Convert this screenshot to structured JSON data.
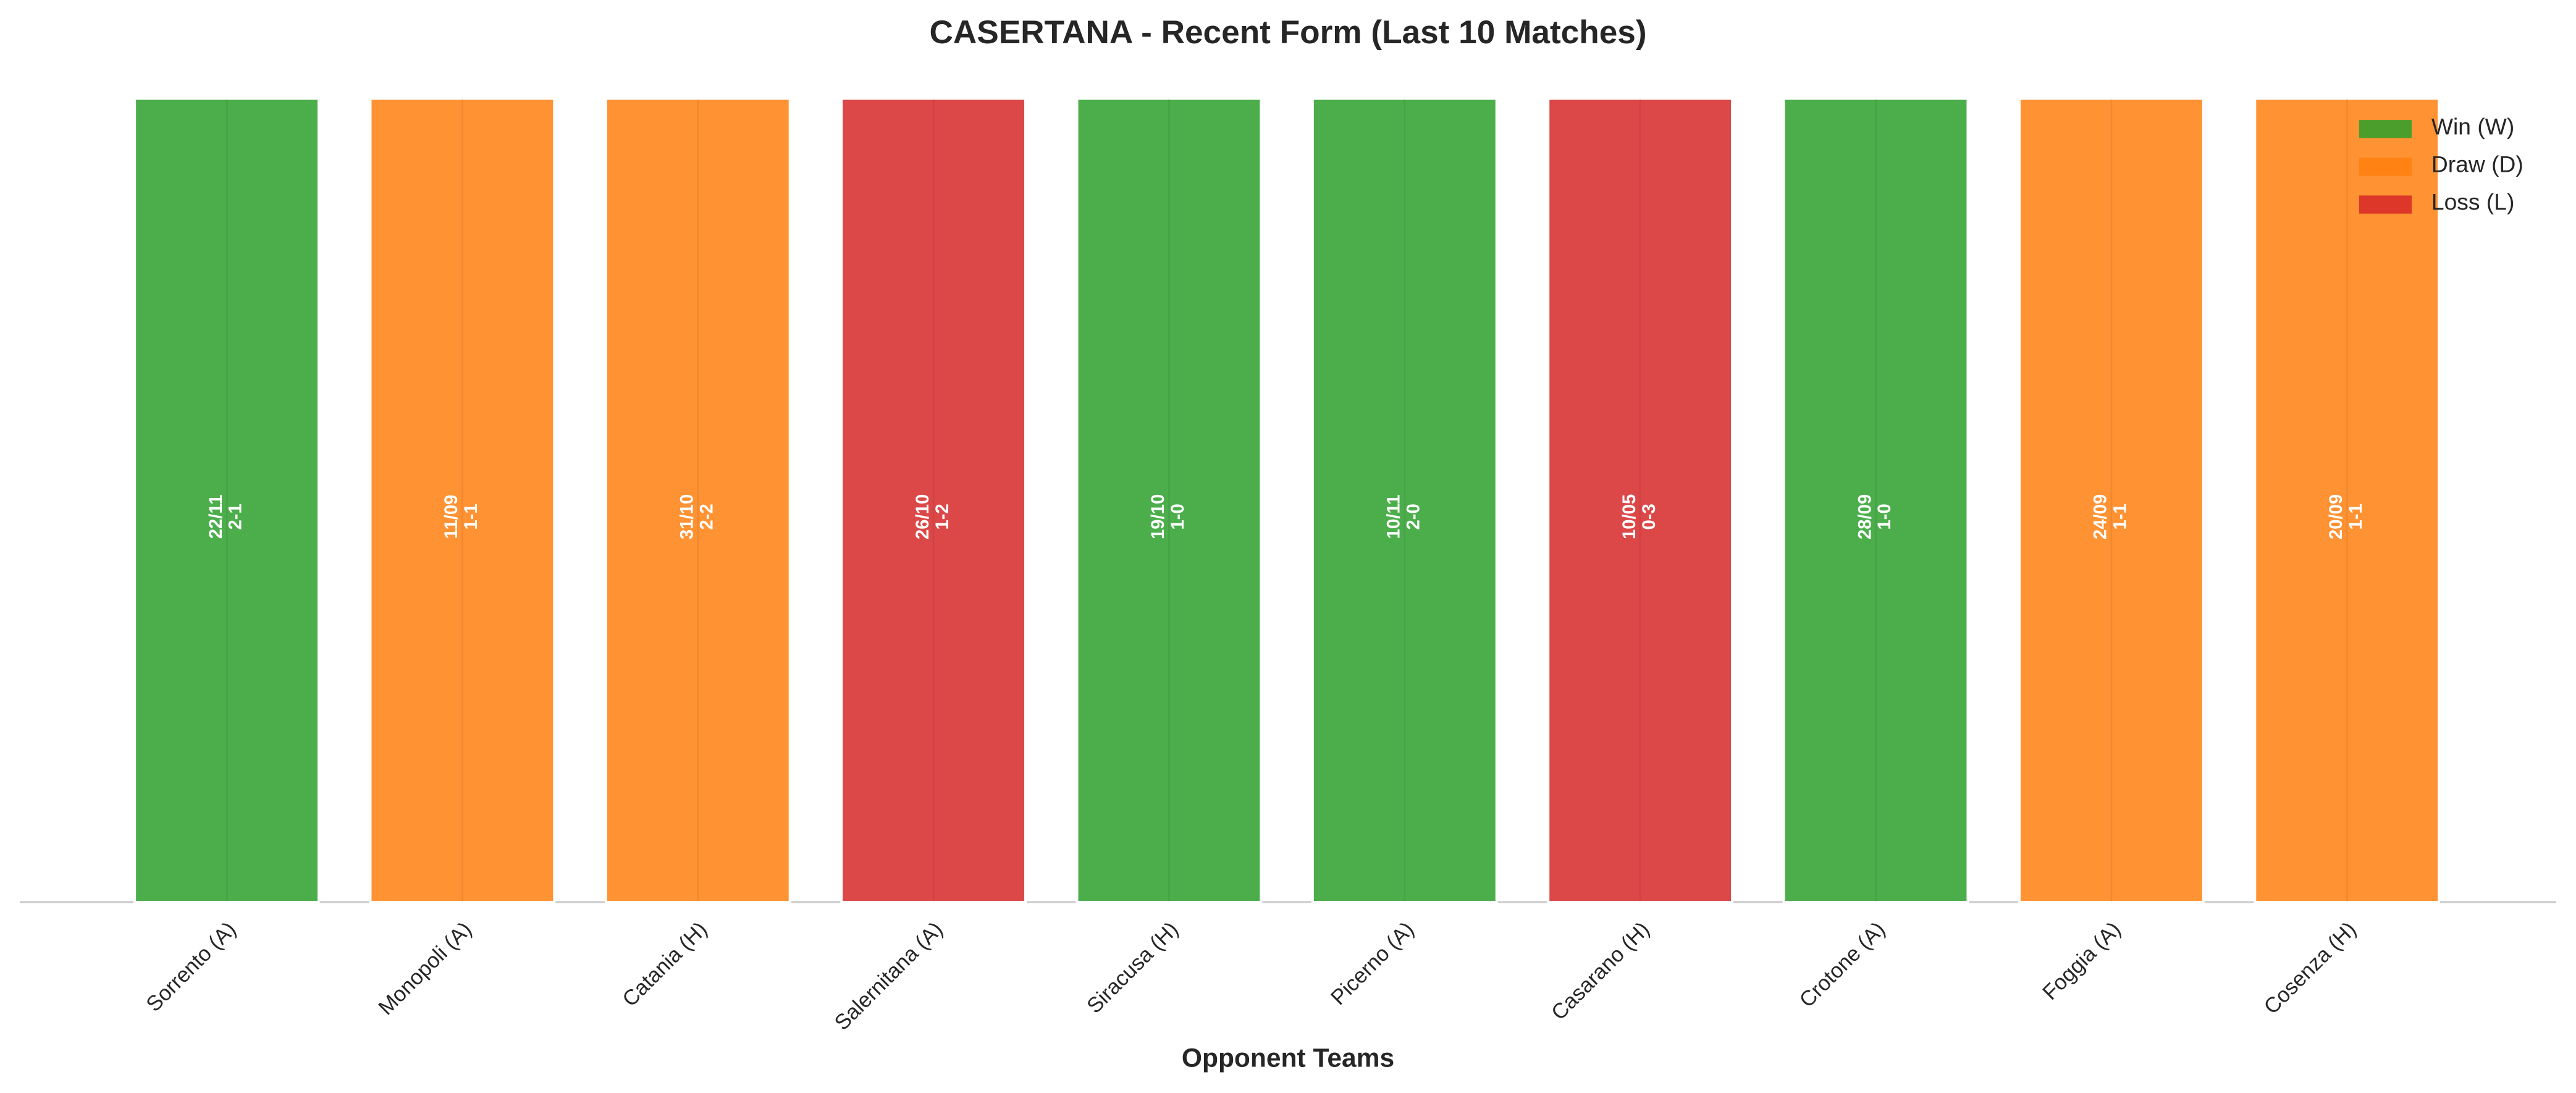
{
  "chart_data": {
    "type": "bar",
    "title": "CASERTANA - Recent Form (Last 10 Matches)",
    "x_label": "Opponent Teams",
    "categories": [
      "Sorrento (A)",
      "Monopoli (A)",
      "Catania (H)",
      "Salernitana (A)",
      "Siracusa (H)",
      "Picerno (A)",
      "Casarano (H)",
      "Crotone (A)",
      "Foggia (A)",
      "Cosenza (H)"
    ],
    "values": [
      1,
      1,
      1,
      1,
      1,
      1,
      1,
      1,
      1,
      1
    ],
    "results": [
      "W",
      "D",
      "D",
      "L",
      "W",
      "W",
      "L",
      "W",
      "D",
      "D"
    ],
    "dates": [
      "22/11",
      "11/09",
      "31/10",
      "26/10",
      "19/10",
      "10/11",
      "10/05",
      "28/09",
      "24/09",
      "20/09"
    ],
    "scores": [
      "2-1",
      "1-1",
      "2-2",
      "1-2",
      "1-0",
      "2-0",
      "0-3",
      "1-0",
      "1-1",
      "1-1"
    ],
    "ylim": [
      0,
      1
    ],
    "legend": [
      {
        "name": "Win (W)",
        "result": "W",
        "color": "#2ca02c"
      },
      {
        "name": "Draw (D)",
        "result": "D",
        "color": "#ff7f0e"
      },
      {
        "name": "Loss (L)",
        "result": "L",
        "color": "#d62728"
      }
    ],
    "legend_position": "upper right"
  }
}
